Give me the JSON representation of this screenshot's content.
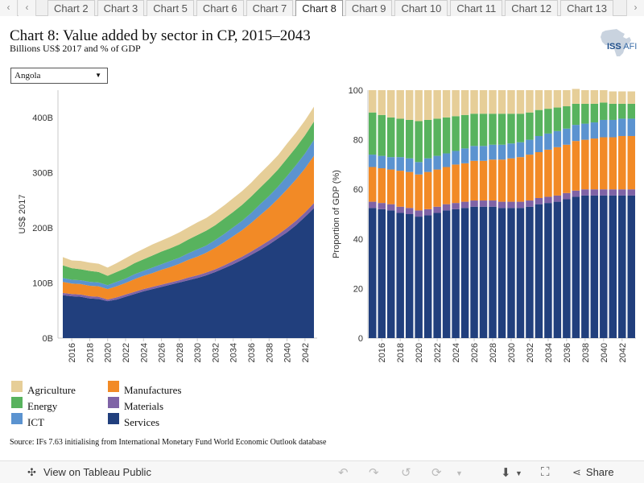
{
  "tabs": {
    "items": [
      "Chart 2",
      "Chart 3",
      "Chart 5",
      "Chart 6",
      "Chart 7",
      "Chart 8",
      "Chart 9",
      "Chart 10",
      "Chart 11",
      "Chart 12",
      "Chart 13"
    ],
    "active": "Chart 8",
    "prev_glyph": "‹",
    "next_glyph": "›",
    "more_glyph": "›"
  },
  "header": {
    "title": "Chart 8: Value added by sector in CP, 2015–2043",
    "subtitle": "Billions US$ 2017 and % of GDP",
    "logo_text": "ISS",
    "logo_suffix": "AFI",
    "logo_icon": "africa-map-icon"
  },
  "country_select": {
    "value": "Angola",
    "caret": "▼"
  },
  "colors": {
    "Agriculture": "#e6ce98",
    "Energy": "#58b35e",
    "ICT": "#5b93d0",
    "Manufactures": "#f28a26",
    "Materials": "#7f63a6",
    "Services": "#213f7d"
  },
  "chart_data": [
    {
      "type": "area",
      "stacked": true,
      "ylabel": "US$ 2017",
      "xlabel": "",
      "ylim": [
        0,
        450
      ],
      "yticks": [
        0,
        100,
        200,
        300,
        400
      ],
      "ytick_labels": [
        "0B",
        "100B",
        "200B",
        "300B",
        "400B"
      ],
      "xtick_labels": [
        "2016",
        "2018",
        "2020",
        "2022",
        "2024",
        "2026",
        "2028",
        "2030",
        "2032",
        "2034",
        "2036",
        "2038",
        "2040",
        "2042"
      ],
      "x": [
        2015,
        2016,
        2017,
        2018,
        2019,
        2020,
        2021,
        2022,
        2023,
        2024,
        2025,
        2026,
        2027,
        2028,
        2029,
        2030,
        2031,
        2032,
        2033,
        2034,
        2035,
        2036,
        2037,
        2038,
        2039,
        2040,
        2041,
        2042,
        2043
      ],
      "series": [
        {
          "name": "Services",
          "values": [
            78,
            76,
            75,
            72,
            71,
            67,
            70,
            75,
            80,
            85,
            89,
            93,
            97,
            101,
            105,
            109,
            114,
            120,
            127,
            134,
            142,
            151,
            160,
            170,
            181,
            192,
            205,
            220,
            236
          ]
        },
        {
          "name": "Materials",
          "values": [
            4,
            4,
            4,
            4,
            4,
            3,
            4,
            4,
            4,
            4,
            4,
            4,
            4,
            4,
            5,
            5,
            5,
            5,
            5,
            6,
            6,
            6,
            7,
            7,
            7,
            8,
            8,
            8,
            9
          ]
        },
        {
          "name": "Manufactures",
          "values": [
            20,
            19,
            19,
            19,
            19,
            19,
            20,
            21,
            23,
            24,
            25,
            27,
            28,
            30,
            32,
            34,
            36,
            39,
            42,
            45,
            48,
            52,
            56,
            60,
            65,
            70,
            75,
            80,
            86
          ]
        },
        {
          "name": "ICT",
          "values": [
            7,
            7,
            7,
            7,
            7,
            7,
            8,
            8,
            9,
            9,
            10,
            10,
            11,
            11,
            12,
            13,
            13,
            14,
            15,
            16,
            17,
            18,
            20,
            21,
            22,
            24,
            26,
            27,
            29
          ]
        },
        {
          "name": "Energy",
          "values": [
            23,
            21,
            20,
            20,
            19,
            17,
            18,
            19,
            20,
            21,
            22,
            23,
            23,
            24,
            25,
            26,
            27,
            27,
            28,
            28,
            29,
            30,
            30,
            31,
            31,
            32,
            32,
            33,
            33
          ]
        },
        {
          "name": "Agriculture",
          "values": [
            15,
            14,
            15,
            15,
            15,
            15,
            16,
            18,
            18,
            19,
            20,
            20,
            21,
            22,
            22,
            23,
            23,
            24,
            24,
            25,
            25,
            25,
            26,
            26,
            26,
            27,
            27,
            27,
            27
          ]
        }
      ]
    },
    {
      "type": "bar",
      "stacked": true,
      "ylabel": "Proportion of GDP (%)",
      "xlabel": "",
      "ylim": [
        0,
        100
      ],
      "yticks": [
        0,
        20,
        40,
        60,
        80,
        100
      ],
      "ytick_labels": [
        "0",
        "20",
        "40",
        "60",
        "80",
        "100"
      ],
      "xtick_labels": [
        "2016",
        "2018",
        "2020",
        "2022",
        "2024",
        "2026",
        "2028",
        "2030",
        "2032",
        "2034",
        "2036",
        "2038",
        "2040",
        "2042"
      ],
      "categories": [
        "2015",
        "2016",
        "2017",
        "2018",
        "2019",
        "2020",
        "2021",
        "2022",
        "2023",
        "2024",
        "2025",
        "2026",
        "2027",
        "2028",
        "2029",
        "2030",
        "2031",
        "2032",
        "2033",
        "2034",
        "2035",
        "2036",
        "2037",
        "2038",
        "2039",
        "2040",
        "2041",
        "2042",
        "2043"
      ],
      "series": [
        {
          "name": "Services",
          "values": [
            52.5,
            52,
            51.5,
            50.5,
            50,
            49,
            49.5,
            50.5,
            51.5,
            52,
            52.5,
            53,
            53,
            53,
            52.5,
            52.5,
            52.5,
            53,
            54,
            54.5,
            55,
            56,
            57,
            57.5,
            57.5,
            57.5,
            57.5,
            57.5,
            57.5
          ]
        },
        {
          "name": "Materials",
          "values": [
            2.5,
            2.5,
            2.5,
            2.5,
            2.5,
            2.5,
            2.5,
            2.5,
            2.5,
            2.5,
            2.5,
            2.5,
            2.5,
            2.5,
            2.5,
            2.5,
            2.5,
            2.5,
            2.5,
            2.5,
            2.5,
            2.5,
            2.5,
            2.5,
            2.5,
            2.5,
            2.5,
            2.5,
            2.5
          ]
        },
        {
          "name": "Manufactures",
          "values": [
            14,
            14,
            14,
            14.5,
            14.5,
            14.5,
            15,
            15,
            15,
            15.5,
            15.5,
            16,
            16,
            16.5,
            17,
            17.5,
            18,
            18.5,
            18.5,
            19,
            19.5,
            19.5,
            20,
            20,
            20.5,
            21,
            21,
            21.5,
            21.5
          ]
        },
        {
          "name": "ICT",
          "values": [
            5,
            5,
            5,
            5.5,
            5.5,
            5,
            5.5,
            5.5,
            5.5,
            5.5,
            6,
            6,
            6,
            6,
            6,
            6,
            6,
            6,
            6.5,
            6.5,
            6.5,
            6.5,
            6.5,
            6.5,
            6.5,
            7,
            7,
            7,
            7
          ]
        },
        {
          "name": "Energy",
          "values": [
            17,
            16.5,
            16,
            15.5,
            15.5,
            16.5,
            15.5,
            15,
            14.5,
            14,
            13.5,
            13,
            13,
            12.5,
            12.5,
            12,
            11.5,
            11,
            10.5,
            10,
            9.5,
            9,
            8.5,
            8,
            7.5,
            7,
            6.5,
            6,
            6
          ]
        },
        {
          "name": "Agriculture",
          "values": [
            9,
            10,
            11,
            11.5,
            12,
            12.5,
            12,
            11.5,
            11,
            10.5,
            10,
            9.5,
            9.5,
            9.5,
            9.5,
            9.5,
            9.5,
            9,
            8,
            7.5,
            7,
            6.5,
            6,
            5.5,
            5.5,
            5,
            5,
            5,
            5
          ]
        }
      ]
    }
  ],
  "legend": {
    "items": [
      "Agriculture",
      "Energy",
      "ICT",
      "Manufactures",
      "Materials",
      "Services"
    ]
  },
  "source": "Source: IFs 7.63 initialising from International Monetary Fund World Economic Outlook database",
  "toolbar": {
    "view_label": "View on Tableau Public",
    "share_label": "Share"
  }
}
